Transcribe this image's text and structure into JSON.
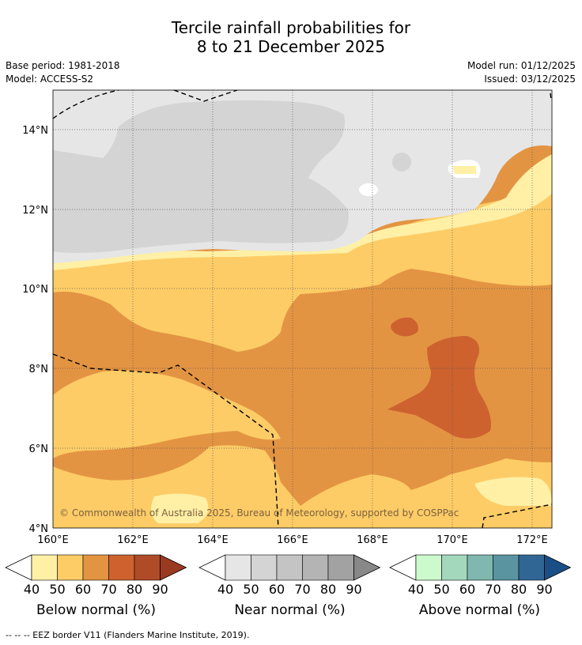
{
  "header": {
    "title_line1": "Tercile rainfall probabilities for",
    "title_line2": "8 to 21 December 2025",
    "base_period": "Base period: 1981-2018",
    "model": "Model: ACCESS-S2",
    "model_run": "Model run: 01/12/2025",
    "issued": "Issued: 03/12/2025"
  },
  "map": {
    "lon_labels": [
      "160°E",
      "162°E",
      "164°E",
      "166°E",
      "168°E",
      "170°E",
      "172°E"
    ],
    "lat_labels": [
      "14°N",
      "12°N",
      "10°N",
      "8°N",
      "6°N",
      "4°N"
    ],
    "copyright": "© Commonwealth of Australia 2025, Bureau of Meteorology, supported by COSPPac"
  },
  "colorbars": [
    {
      "label": "Below normal (%)",
      "ticks": [
        "40",
        "50",
        "60",
        "70",
        "80",
        "90"
      ],
      "colors": [
        "#fff0a6",
        "#fdcc66",
        "#e39442",
        "#cd622f",
        "#b04b28",
        "#9a3a20"
      ]
    },
    {
      "label": "Near normal (%)",
      "ticks": [
        "40",
        "50",
        "60",
        "70",
        "80",
        "90"
      ],
      "colors": [
        "#e6e6e6",
        "#d4d4d4",
        "#c4c4c4",
        "#b4b4b4",
        "#a2a2a2",
        "#888888"
      ]
    },
    {
      "label": "Above normal (%)",
      "ticks": [
        "40",
        "50",
        "60",
        "70",
        "80",
        "90"
      ],
      "colors": [
        "#cdfacd",
        "#a3d8bd",
        "#80b7ae",
        "#5a94a1",
        "#306694",
        "#1a4f86"
      ]
    }
  ],
  "footer": "--  --  -- EEZ border V11 (Flanders Marine Institute, 2019)."
}
